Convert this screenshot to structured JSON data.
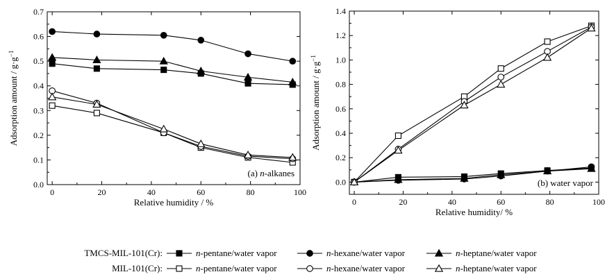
{
  "chart_data": [
    {
      "type": "line",
      "panel_label_prefix": "(a) ",
      "panel_label_italic": "n",
      "panel_label_suffix": "-alkanes",
      "xlabel": "Relative humidity / %",
      "ylabel_main": "Adsorption amount / g",
      "ylabel_mid": "·",
      "ylabel_g": "g",
      "ylabel_exp": "−1",
      "xlim": [
        -2,
        100
      ],
      "ylim": [
        0,
        0.7
      ],
      "xticks": [
        0,
        20,
        40,
        60,
        80,
        100
      ],
      "yticks": [
        0.0,
        0.1,
        0.2,
        0.3,
        0.4,
        0.5,
        0.6,
        0.7
      ],
      "series": [
        {
          "name": "TMCS-MIL-101(Cr): n-pentane/water vapor",
          "marker": "square",
          "filled": true,
          "x": [
            0,
            18,
            45,
            60,
            79,
            97
          ],
          "y": [
            0.49,
            0.47,
            0.465,
            0.45,
            0.41,
            0.405
          ]
        },
        {
          "name": "TMCS-MIL-101(Cr): n-hexane/water vapor",
          "marker": "circle",
          "filled": true,
          "x": [
            0,
            18,
            45,
            60,
            79,
            97
          ],
          "y": [
            0.62,
            0.61,
            0.605,
            0.585,
            0.53,
            0.5
          ]
        },
        {
          "name": "TMCS-MIL-101(Cr): n-heptane/water vapor",
          "marker": "triangle",
          "filled": true,
          "x": [
            0,
            18,
            45,
            60,
            79,
            97
          ],
          "y": [
            0.515,
            0.505,
            0.5,
            0.46,
            0.435,
            0.415
          ]
        },
        {
          "name": "MIL-101(Cr): n-pentane/water vapor",
          "marker": "square",
          "filled": false,
          "x": [
            0,
            18,
            45,
            60,
            79,
            97
          ],
          "y": [
            0.32,
            0.29,
            0.21,
            0.15,
            0.11,
            0.09
          ]
        },
        {
          "name": "MIL-101(Cr): n-hexane/water vapor",
          "marker": "circle",
          "filled": false,
          "x": [
            0,
            18,
            45,
            60,
            79,
            97
          ],
          "y": [
            0.38,
            0.33,
            0.21,
            0.155,
            0.115,
            0.105
          ]
        },
        {
          "name": "MIL-101(Cr): n-heptane/water vapor",
          "marker": "triangle",
          "filled": false,
          "x": [
            0,
            18,
            45,
            60,
            79,
            97
          ],
          "y": [
            0.355,
            0.325,
            0.225,
            0.165,
            0.12,
            0.11
          ]
        }
      ]
    },
    {
      "type": "line",
      "panel_label_prefix": "(b) water vapor",
      "panel_label_italic": "",
      "panel_label_suffix": "",
      "xlabel": "Relative humidity/ %",
      "ylabel_main": "Adsorption amount / g",
      "ylabel_mid": "·",
      "ylabel_g": "g",
      "ylabel_exp": "−1",
      "xlim": [
        -2,
        100
      ],
      "ylim": [
        -0.1,
        1.4
      ],
      "xticks": [
        0,
        20,
        40,
        60,
        80,
        100
      ],
      "yticks": [
        0.0,
        0.2,
        0.4,
        0.6,
        0.8,
        1.0,
        1.2,
        1.4
      ],
      "series": [
        {
          "name": "TMCS-MIL-101(Cr): n-pentane/water vapor",
          "marker": "square",
          "filled": true,
          "x": [
            0,
            18,
            45,
            60,
            79,
            97
          ],
          "y": [
            0.0,
            0.04,
            0.045,
            0.07,
            0.095,
            0.115
          ]
        },
        {
          "name": "TMCS-MIL-101(Cr): n-hexane/water vapor",
          "marker": "circle",
          "filled": true,
          "x": [
            0,
            18,
            45,
            60,
            79,
            97
          ],
          "y": [
            0.0,
            0.015,
            0.025,
            0.05,
            0.09,
            0.125
          ]
        },
        {
          "name": "TMCS-MIL-101(Cr): n-heptane/water vapor",
          "marker": "triangle",
          "filled": true,
          "x": [
            0,
            18,
            45,
            60,
            79,
            97
          ],
          "y": [
            0.0,
            0.02,
            0.03,
            0.06,
            0.09,
            0.11
          ]
        },
        {
          "name": "MIL-101(Cr): n-pentane/water vapor",
          "marker": "square",
          "filled": false,
          "x": [
            0,
            18,
            45,
            60,
            79,
            97
          ],
          "y": [
            0.0,
            0.38,
            0.7,
            0.93,
            1.15,
            1.28
          ]
        },
        {
          "name": "MIL-101(Cr): n-hexane/water vapor",
          "marker": "circle",
          "filled": false,
          "x": [
            0,
            18,
            45,
            60,
            79,
            97
          ],
          "y": [
            0.0,
            0.27,
            0.66,
            0.86,
            1.07,
            1.27
          ]
        },
        {
          "name": "MIL-101(Cr): n-heptane/water vapor",
          "marker": "triangle",
          "filled": false,
          "x": [
            0,
            18,
            45,
            60,
            79,
            97
          ],
          "y": [
            0.0,
            0.26,
            0.63,
            0.8,
            1.02,
            1.26
          ]
        }
      ]
    }
  ],
  "legend": {
    "rows": [
      {
        "group": "TMCS-MIL-101(Cr):",
        "filled": true,
        "entries": [
          {
            "marker": "square",
            "italic": "n",
            "label": "-pentane/water vapor"
          },
          {
            "marker": "circle",
            "italic": "n",
            "label": "-hexane/water vapor"
          },
          {
            "marker": "triangle",
            "italic": "n",
            "label": "-heptane/water vapor"
          }
        ]
      },
      {
        "group": "MIL-101(Cr):",
        "filled": false,
        "entries": [
          {
            "marker": "square",
            "italic": "n",
            "label": "-pentane/water vapor"
          },
          {
            "marker": "circle",
            "italic": "n",
            "label": "-hexane/water vapor"
          },
          {
            "marker": "triangle",
            "italic": "n",
            "label": "-heptane/water vapor"
          }
        ]
      }
    ]
  }
}
